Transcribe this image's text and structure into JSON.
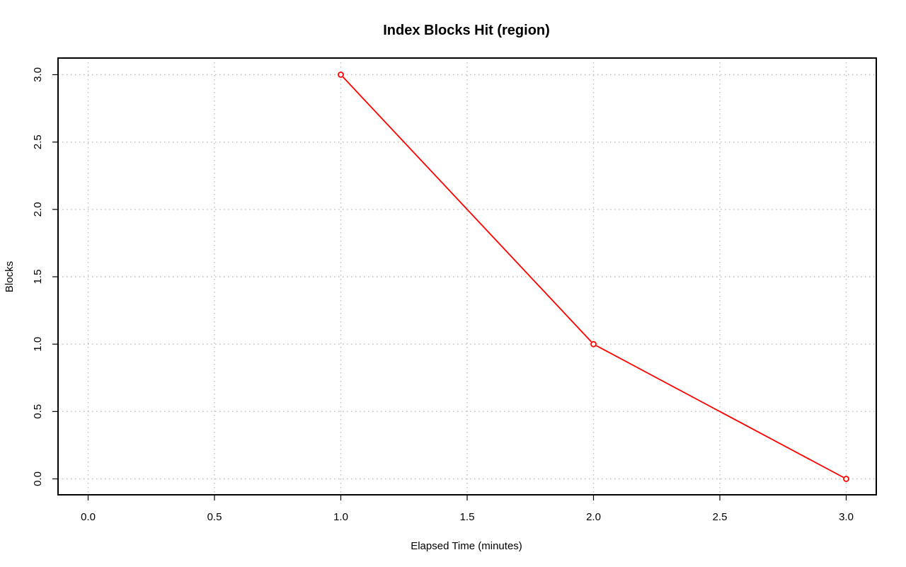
{
  "chart_data": {
    "type": "line",
    "title": "Index Blocks Hit (region)",
    "xlabel": "Elapsed Time (minutes)",
    "ylabel": "Blocks",
    "xlim": [
      0.0,
      3.0
    ],
    "ylim": [
      0.0,
      3.0
    ],
    "x_ticks": [
      "0.0",
      "0.5",
      "1.0",
      "1.5",
      "2.0",
      "2.5",
      "3.0"
    ],
    "y_ticks": [
      "0.0",
      "0.5",
      "1.0",
      "1.5",
      "2.0",
      "2.5",
      "3.0"
    ],
    "grid": true,
    "series": [
      {
        "color": "#ff0000",
        "marker": "open-circle",
        "x": [
          1.0,
          2.0,
          3.0
        ],
        "y": [
          3.0,
          1.0,
          0.0
        ]
      }
    ]
  }
}
